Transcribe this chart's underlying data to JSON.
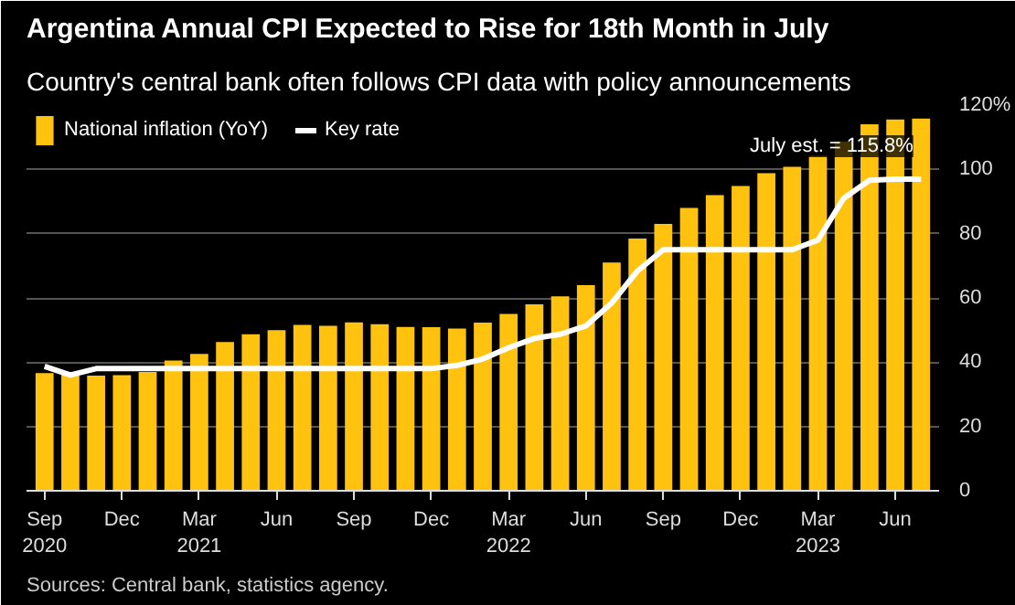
{
  "chart_data": {
    "type": "bar",
    "title": "Argentina Annual CPI Expected to Rise for 18th Month in July",
    "subtitle": "Country's central bank often follows CPI data with policy announcements",
    "categories": [
      "Sep\n2020",
      null,
      null,
      "Dec",
      null,
      null,
      "Mar\n2021",
      null,
      null,
      "Jun",
      null,
      null,
      "Sep",
      null,
      null,
      "Dec",
      null,
      null,
      "Mar\n2022",
      null,
      null,
      "Jun",
      null,
      null,
      "Sep",
      null,
      null,
      "Dec",
      null,
      null,
      "Mar\n2023",
      null,
      null,
      "Jun",
      null
    ],
    "series": [
      {
        "name": "National inflation (YoY)",
        "color": "#ffc20e",
        "values": [
          36.6,
          36.3,
          35.8,
          36,
          37,
          40.5,
          42.6,
          46.3,
          48.7,
          50,
          51.6,
          51.3,
          52.4,
          51.8,
          51,
          50.9,
          50.5,
          52.3,
          55,
          58,
          60.5,
          64,
          71,
          78.5,
          83,
          88,
          92,
          94.8,
          98.8,
          100.8,
          104.2,
          108.7,
          114,
          115.5,
          115.8
        ]
      },
      {
        "name": "Key rate",
        "color": "#ffffff",
        "type": "line",
        "values": [
          38.7,
          36,
          38,
          38,
          38,
          38,
          38,
          38,
          38,
          38,
          38,
          38,
          38,
          38,
          38,
          38,
          39,
          41,
          44.5,
          47.4,
          48.7,
          51.3,
          58.4,
          68.4,
          75,
          75,
          75,
          75,
          75,
          75,
          78,
          91,
          96.6,
          97,
          97
        ]
      }
    ],
    "ylim": [
      0,
      120
    ],
    "yticks": [
      0,
      20,
      40,
      60,
      80,
      100,
      {
        "value": 120,
        "label": "120%"
      }
    ],
    "grid": "y",
    "legend": "top left",
    "annotations": [
      "July est. = 115.8%",
      "Sources: Central bank, statistics agency."
    ]
  }
}
